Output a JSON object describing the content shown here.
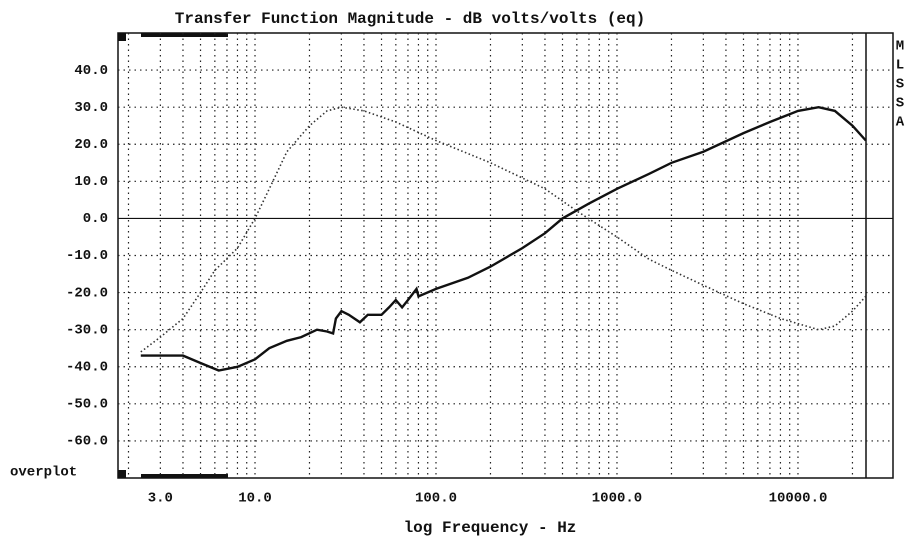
{
  "chart_data": {
    "type": "line",
    "title": "Transfer Function Magnitude - dB volts/volts (eq)",
    "x_label": "log Frequency - Hz",
    "side_label": [
      "M",
      "L",
      "S",
      "S",
      "A"
    ],
    "mode_label": "overplot",
    "log_x": true,
    "grid": true,
    "xlim": [
      1.75,
      33500
    ],
    "ylim": [
      -70,
      50
    ],
    "xticks": [
      {
        "value": 3,
        "label": "3.0"
      },
      {
        "value": 10,
        "label": "10.0"
      },
      {
        "value": 100,
        "label": "100.0"
      },
      {
        "value": 1000,
        "label": "1000.0"
      },
      {
        "value": 10000,
        "label": "10000.0"
      }
    ],
    "xminorticks": [
      2,
      3,
      4,
      5,
      6,
      7,
      8,
      9,
      10,
      20,
      30,
      40,
      50,
      60,
      70,
      80,
      90,
      100,
      200,
      300,
      400,
      500,
      600,
      700,
      800,
      900,
      1000,
      2000,
      3000,
      4000,
      5000,
      6000,
      7000,
      8000,
      9000,
      10000,
      20000
    ],
    "yticks": [
      {
        "value": 40,
        "label": "40.0"
      },
      {
        "value": 30,
        "label": "30.0"
      },
      {
        "value": 20,
        "label": "20.0"
      },
      {
        "value": 10,
        "label": "10.0"
      },
      {
        "value": 0,
        "label": "0.0"
      },
      {
        "value": -10,
        "label": "-10.0"
      },
      {
        "value": -20,
        "label": "-20.0"
      },
      {
        "value": -30,
        "label": "-30.0"
      },
      {
        "value": -40,
        "label": "-40.0"
      },
      {
        "value": -50,
        "label": "-50.0"
      },
      {
        "value": -60,
        "label": "-60.0"
      }
    ],
    "series": [
      {
        "color": "#111111",
        "style": "solid",
        "x": [
          2.34,
          3,
          4,
          5,
          6.3,
          8,
          10,
          12,
          15,
          18,
          22,
          25,
          27,
          28,
          30,
          33,
          38,
          42,
          50,
          55,
          60,
          65,
          70,
          78,
          80,
          100,
          150,
          200,
          300,
          400,
          500,
          700,
          1000,
          1500,
          2000,
          3000,
          5000,
          7000,
          10000,
          13000,
          16000,
          20000,
          23700
        ],
        "values": [
          -37,
          -37,
          -37,
          -39,
          -41,
          -40,
          -38,
          -35,
          -33,
          -32,
          -30,
          -30.5,
          -31,
          -27,
          -25,
          -26,
          -28,
          -26,
          -26,
          -24,
          -22,
          -24,
          -22,
          -19,
          -21,
          -19,
          -16,
          -13,
          -8,
          -4,
          0,
          4,
          8,
          12,
          15,
          18,
          23,
          26,
          29,
          30,
          29,
          25,
          21
        ]
      },
      {
        "color": "#333333",
        "style": "dotted",
        "x": [
          2.34,
          3,
          4,
          5,
          6,
          8,
          10,
          12,
          15,
          20,
          25,
          30,
          40,
          60,
          100,
          200,
          400,
          600,
          1000,
          1500,
          2000,
          3000,
          5000,
          8000,
          13000,
          16000,
          20000,
          23700
        ],
        "values": [
          -36,
          -32,
          -27,
          -20,
          -14,
          -8,
          0,
          8,
          18,
          25,
          29,
          30,
          29,
          26,
          21,
          15,
          8,
          2,
          -5,
          -11,
          -14,
          -18,
          -23,
          -27,
          -30,
          -29,
          -25,
          -21
        ]
      }
    ]
  }
}
